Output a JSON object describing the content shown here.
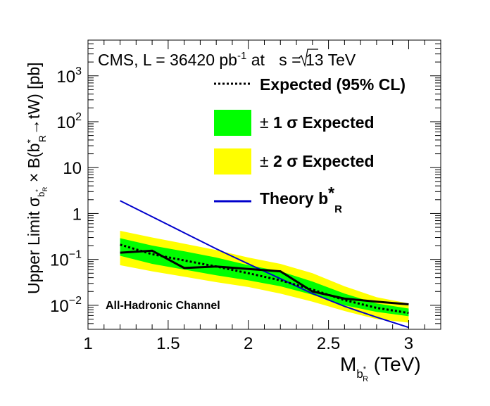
{
  "chart_data": {
    "type": "line",
    "header": {
      "experiment": "CMS, L = 36420 pb",
      "lumi_exponent": "-1",
      "at": " at ",
      "sqrt_s": "s",
      "energy": " = 13 TeV"
    },
    "annotation": "All-Hadronic Channel",
    "xlabel": {
      "main": "M",
      "sub": "b",
      "subsub": "R",
      "unit": " (TeV)"
    },
    "ylabel": {
      "prefix": "Upper Limit σ",
      "process": " × B(b",
      "decay": "→tW) [pb]"
    },
    "x_axis": {
      "min": 1.0,
      "max": 3.2,
      "ticks": [
        1,
        1.5,
        2,
        2.5,
        3
      ],
      "tick_labels": [
        "1",
        "1.5",
        "2",
        "2.5",
        "3"
      ]
    },
    "y_axis": {
      "scale": "log",
      "min": 0.003,
      "max": 6000,
      "ticks": [
        0.01,
        0.1,
        1,
        10,
        100,
        1000
      ],
      "tick_labels": [
        {
          "base": "10",
          "exp": "−2"
        },
        {
          "base": "10",
          "exp": "−1"
        },
        {
          "base": "1",
          "exp": ""
        },
        {
          "base": "10",
          "exp": ""
        },
        {
          "base": "10",
          "exp": "2"
        },
        {
          "base": "10",
          "exp": "3"
        }
      ]
    },
    "legend": {
      "placement": "top-right",
      "entries": [
        {
          "key": "expected",
          "label": "Expected (95% CL)"
        },
        {
          "key": "band1",
          "label_pm": "±",
          "label": " 1  σ Expected"
        },
        {
          "key": "band2",
          "label_pm": "±",
          "label": " 2  σ Expected"
        },
        {
          "key": "theory",
          "label": "Theory b",
          "label_sub": "R"
        }
      ]
    },
    "colors": {
      "observed": "#000000",
      "expected": "#000000",
      "band1": "#00ff00",
      "band2": "#ffff00",
      "theory": "#0000cc"
    },
    "x": [
      1.2,
      1.4,
      1.6,
      1.8,
      2.0,
      2.2,
      2.4,
      2.6,
      2.8,
      3.0
    ],
    "series": [
      {
        "key": "band2_low",
        "values": [
          0.075,
          0.055,
          0.042,
          0.032,
          0.025,
          0.018,
          0.012,
          0.0075,
          0.005,
          0.0042
        ]
      },
      {
        "key": "band2_high",
        "values": [
          0.42,
          0.3,
          0.22,
          0.16,
          0.11,
          0.08,
          0.05,
          0.026,
          0.015,
          0.011
        ]
      },
      {
        "key": "band1_low",
        "values": [
          0.12,
          0.08,
          0.06,
          0.045,
          0.035,
          0.026,
          0.017,
          0.01,
          0.0072,
          0.0058
        ]
      },
      {
        "key": "band1_high",
        "values": [
          0.29,
          0.2,
          0.15,
          0.11,
          0.075,
          0.055,
          0.033,
          0.018,
          0.011,
          0.0085
        ]
      },
      {
        "key": "expected",
        "values": [
          0.21,
          0.13,
          0.095,
          0.07,
          0.05,
          0.035,
          0.022,
          0.013,
          0.0088,
          0.0068
        ]
      },
      {
        "key": "observed",
        "values": [
          0.14,
          0.155,
          0.065,
          0.07,
          0.062,
          0.055,
          0.02,
          0.014,
          0.012,
          0.0105
        ]
      },
      {
        "key": "theory",
        "values": [
          1.9,
          0.85,
          0.38,
          0.17,
          0.08,
          0.038,
          0.018,
          0.0095,
          0.0055,
          0.0033
        ]
      }
    ]
  }
}
